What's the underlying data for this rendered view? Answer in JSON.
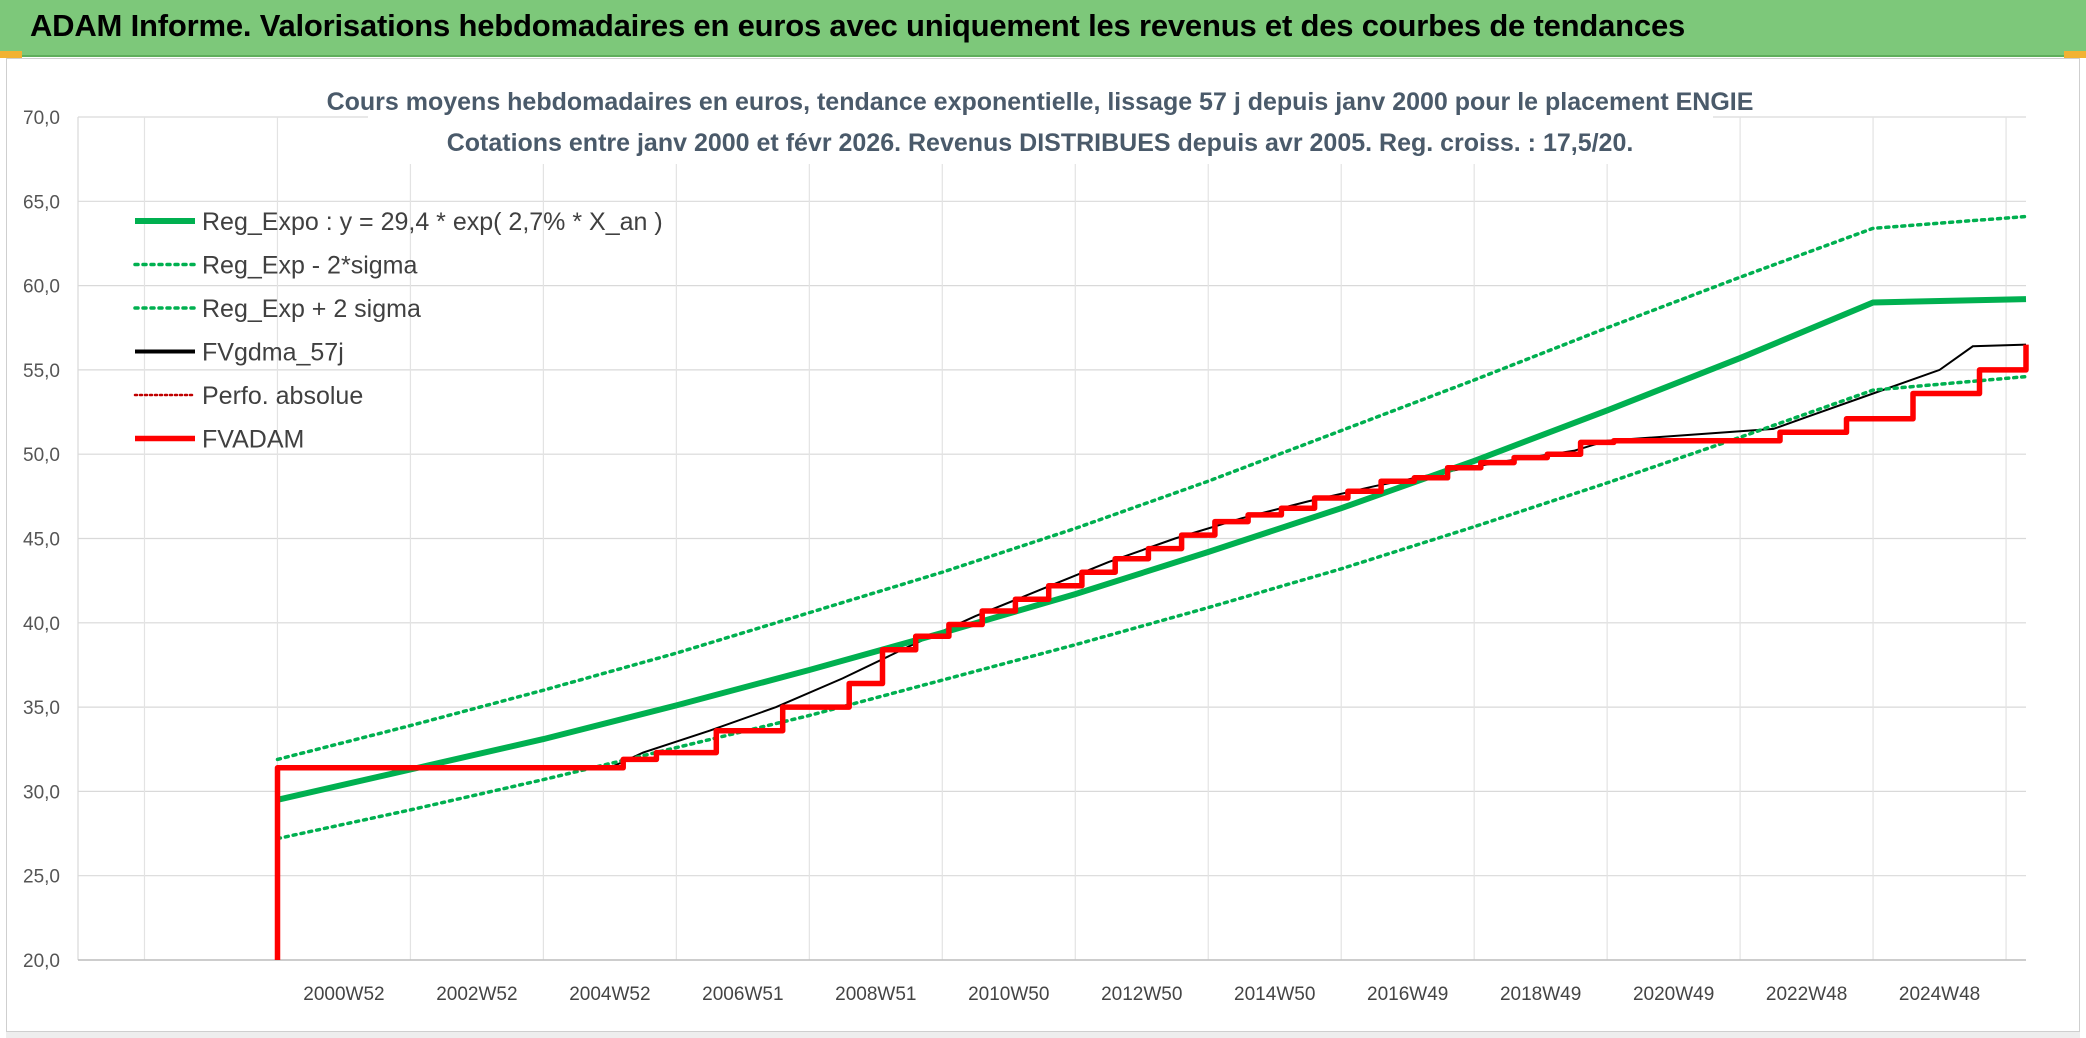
{
  "header": {
    "title": "ADAM Informe. Valorisations hebdomadaires en euros avec uniquement les revenus et des courbes de tendances"
  },
  "colors": {
    "banner": "#7dc87a",
    "trend": "#00b050",
    "fv": "#ff0000",
    "gdma": "#000000",
    "perfo": "#c00000"
  },
  "chart_data": {
    "type": "line",
    "title": "Cours moyens hebdomadaires en euros, tendance exponentielle, lissage 57 j depuis janv 2000 pour le placement ENGIE",
    "subtitle": "Cotations entre janv 2000 et févr 2026. Revenus DISTRIBUES depuis avr 2005. Reg. croiss. : 17,5/20.",
    "ylim": [
      20,
      70
    ],
    "yticks": [
      "20,0",
      "25,0",
      "30,0",
      "35,0",
      "40,0",
      "45,0",
      "50,0",
      "55,0",
      "60,0",
      "65,0",
      "70,0"
    ],
    "xlim": [
      1997,
      2026.3
    ],
    "xticks": [
      {
        "label": "2000W52",
        "x": 2001.0
      },
      {
        "label": "2002W52",
        "x": 2003.0
      },
      {
        "label": "2004W52",
        "x": 2005.0
      },
      {
        "label": "2006W51",
        "x": 2007.0
      },
      {
        "label": "2008W51",
        "x": 2009.0
      },
      {
        "label": "2010W50",
        "x": 2011.0
      },
      {
        "label": "2012W50",
        "x": 2013.0
      },
      {
        "label": "2014W50",
        "x": 2015.0
      },
      {
        "label": "2016W49",
        "x": 2017.0
      },
      {
        "label": "2018W49",
        "x": 2019.0
      },
      {
        "label": "2020W49",
        "x": 2021.0
      },
      {
        "label": "2022W48",
        "x": 2023.0
      },
      {
        "label": "2024W48",
        "x": 2025.0
      }
    ],
    "grid": true,
    "legend_position": "top-left",
    "series": [
      {
        "name": "Reg_Expo : y = 29,4 * exp( 2,7% *  X_an )",
        "style": "solid-thick",
        "color": "#00b050",
        "x": [
          2000.0,
          2002.0,
          2004.0,
          2006.0,
          2008.0,
          2010.0,
          2012.0,
          2014.0,
          2016.0,
          2018.0,
          2020.0,
          2022.0,
          2024.0,
          2026.3
        ],
        "values": [
          29.5,
          31.3,
          33.1,
          35.1,
          37.2,
          39.4,
          41.7,
          44.2,
          46.8,
          49.6,
          52.6,
          55.7,
          59.0,
          59.2
        ]
      },
      {
        "name": "Reg_Exp - 2*sigma",
        "style": "dotted",
        "color": "#00b050",
        "x": [
          2000.0,
          2002.0,
          2004.0,
          2006.0,
          2008.0,
          2010.0,
          2012.0,
          2014.0,
          2016.0,
          2018.0,
          2020.0,
          2022.0,
          2024.0,
          2026.3
        ],
        "values": [
          27.2,
          28.9,
          30.7,
          32.6,
          34.5,
          36.6,
          38.7,
          40.9,
          43.2,
          45.7,
          48.3,
          51.0,
          53.8,
          54.6
        ]
      },
      {
        "name": "Reg_Exp + 2 sigma",
        "style": "dotted",
        "color": "#00b050",
        "x": [
          2000.0,
          2002.0,
          2004.0,
          2006.0,
          2008.0,
          2010.0,
          2012.0,
          2014.0,
          2016.0,
          2018.0,
          2020.0,
          2022.0,
          2024.0,
          2026.3
        ],
        "values": [
          31.9,
          33.9,
          36.0,
          38.2,
          40.6,
          43.0,
          45.6,
          48.4,
          51.4,
          54.4,
          57.5,
          60.5,
          63.4,
          64.1
        ]
      },
      {
        "name": "FVgdma_57j",
        "style": "solid",
        "color": "#000000",
        "x": [
          2000.0,
          2005.0,
          2005.5,
          2006.5,
          2007.5,
          2008.5,
          2009.5,
          2010.5,
          2011.5,
          2012.5,
          2013.5,
          2014.5,
          2015.5,
          2016.5,
          2017.5,
          2018.5,
          2019.5,
          2020.0,
          2022.5,
          2023.0,
          2024.0,
          2025.0,
          2025.5,
          2026.3
        ],
        "values": [
          31.4,
          31.4,
          32.3,
          33.6,
          35.0,
          36.7,
          38.6,
          40.4,
          42.0,
          43.6,
          45.0,
          46.2,
          47.2,
          48.1,
          48.9,
          49.6,
          50.2,
          50.8,
          51.5,
          52.2,
          53.6,
          55.0,
          56.4,
          56.5
        ]
      },
      {
        "name": "Perfo. absolue",
        "style": "dotted",
        "color": "#c00000",
        "x": [],
        "values": []
      },
      {
        "name": "FVADAM",
        "style": "step-thick",
        "color": "#ff0000",
        "x": [
          2000.0,
          2000.0,
          2005.2,
          2005.7,
          2006.6,
          2007.6,
          2008.6,
          2009.1,
          2009.6,
          2010.1,
          2010.6,
          2011.1,
          2011.6,
          2012.1,
          2012.6,
          2013.1,
          2013.6,
          2014.1,
          2014.6,
          2015.1,
          2015.6,
          2016.1,
          2016.6,
          2017.1,
          2017.6,
          2018.1,
          2018.6,
          2019.1,
          2019.6,
          2020.1,
          2022.6,
          2023.6,
          2024.6,
          2025.6,
          2026.3
        ],
        "values": [
          20.0,
          31.4,
          31.9,
          32.3,
          33.6,
          35.0,
          36.4,
          38.4,
          39.2,
          39.9,
          40.7,
          41.4,
          42.2,
          43.0,
          43.8,
          44.4,
          45.2,
          46.0,
          46.4,
          46.8,
          47.4,
          47.8,
          48.4,
          48.6,
          49.2,
          49.5,
          49.8,
          50.0,
          50.7,
          50.8,
          51.3,
          52.1,
          53.6,
          55.0,
          56.5
        ]
      }
    ]
  }
}
